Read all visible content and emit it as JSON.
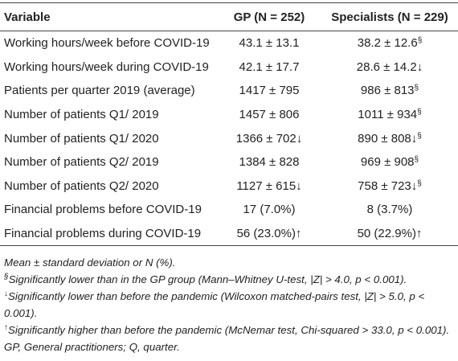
{
  "table": {
    "header": [
      "Variable",
      "GP (N = 252)",
      "Specialists (N = 229)"
    ],
    "rows": [
      [
        "Working hours/week before COVID-19",
        "43.1 ± 13.1",
        {
          "text": "38.2 ± 12.6",
          "sup": "§"
        }
      ],
      [
        "Working hours/week during COVID-19",
        "42.1 ± 17.7",
        "28.6 ± 14.2↓"
      ],
      [
        "Patients per quarter 2019 (average)",
        "1417 ± 795",
        {
          "text": "986 ± 813",
          "sup": "§"
        }
      ],
      [
        "Number of patients Q1/ 2019",
        "1457 ± 806",
        {
          "text": "1011 ± 934",
          "sup": "§"
        }
      ],
      [
        "Number of patients Q1/ 2020",
        "1366 ± 702↓",
        {
          "text": "890 ± 808↓",
          "sup": "§"
        }
      ],
      [
        "Number of patients Q2/ 2019",
        "1384 ± 828",
        {
          "text": "969 ± 908",
          "sup": "§"
        }
      ],
      [
        "Number of patients Q2/ 2020",
        "1127 ± 615↓",
        {
          "text": "758 ± 723↓",
          "sup": "§"
        }
      ],
      [
        "Financial problems before COVID-19",
        "17 (7.0%)",
        "8 (3.7%)"
      ],
      [
        "Financial problems during COVID-19",
        "56 (23.0%)↑",
        "50 (22.9%)↑"
      ]
    ],
    "footnotes": [
      {
        "text": "Mean ± standard deviation or N (%)."
      },
      {
        "sup": "§",
        "text": "Significantly lower than in the GP group (Mann–Whitney U-test, |Z| > 4.0, p < 0.001)."
      },
      {
        "sup": "↓",
        "text": "Significantly lower than before the pandemic (Wilcoxon matched-pairs test, |Z| > 5.0, p < 0.001)."
      },
      {
        "sup": "↑",
        "text": "Significantly higher than before the pandemic (McNemar test, Chi-squared > 33.0, p < 0.001)."
      },
      {
        "text": "GP, General practitioners; Q, quarter."
      }
    ]
  }
}
